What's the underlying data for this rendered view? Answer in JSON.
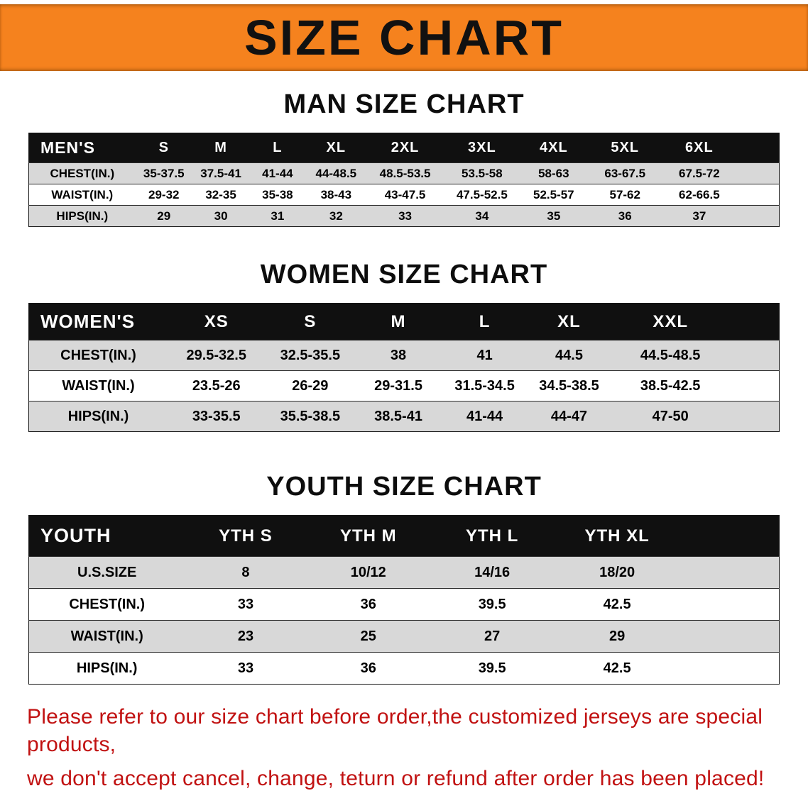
{
  "banner": {
    "title": "SIZE CHART"
  },
  "colors": {
    "banner_bg": "#f5821e",
    "table_header_bg": "#101010",
    "row_stripe_bg": "#d8d8d8",
    "disclaimer_text": "#c11212"
  },
  "sections": [
    {
      "id": "men",
      "heading": "MAN SIZE CHART",
      "header": [
        "MEN'S",
        "S",
        "M",
        "L",
        "XL",
        "2XL",
        "3XL",
        "4XL",
        "5XL",
        "6XL"
      ],
      "rows": [
        [
          "CHEST(IN.)",
          "35-37.5",
          "37.5-41",
          "41-44",
          "44-48.5",
          "48.5-53.5",
          "53.5-58",
          "58-63",
          "63-67.5",
          "67.5-72"
        ],
        [
          "WAIST(IN.)",
          "29-32",
          "32-35",
          "35-38",
          "38-43",
          "43-47.5",
          "47.5-52.5",
          "52.5-57",
          "57-62",
          "62-66.5"
        ],
        [
          "HIPS(IN.)",
          "29",
          "30",
          "31",
          "32",
          "33",
          "34",
          "35",
          "36",
          "37"
        ]
      ]
    },
    {
      "id": "women",
      "heading": "WOMEN SIZE CHART",
      "header": [
        "WOMEN'S",
        "XS",
        "S",
        "M",
        "L",
        "XL",
        "XXL"
      ],
      "rows": [
        [
          "CHEST(IN.)",
          "29.5-32.5",
          "32.5-35.5",
          "38",
          "41",
          "44.5",
          "44.5-48.5"
        ],
        [
          "WAIST(IN.)",
          "23.5-26",
          "26-29",
          "29-31.5",
          "31.5-34.5",
          "34.5-38.5",
          "38.5-42.5"
        ],
        [
          "HIPS(IN.)",
          "33-35.5",
          "35.5-38.5",
          "38.5-41",
          "41-44",
          "44-47",
          "47-50"
        ]
      ]
    },
    {
      "id": "youth",
      "heading": "YOUTH SIZE CHART",
      "header": [
        "YOUTH",
        "YTH S",
        "YTH M",
        "YTH L",
        "YTH XL"
      ],
      "rows": [
        [
          "U.S.SIZE",
          "8",
          "10/12",
          "14/16",
          "18/20"
        ],
        [
          "CHEST(IN.)",
          "33",
          "36",
          "39.5",
          "42.5"
        ],
        [
          "WAIST(IN.)",
          "23",
          "25",
          "27",
          "29"
        ],
        [
          "HIPS(IN.)",
          "33",
          "36",
          "39.5",
          "42.5"
        ]
      ]
    }
  ],
  "disclaimer": {
    "line1": "Please refer to our size chart before order,the customized jerseys are special products,",
    "line2": "we don't accept cancel, change, teturn or refund after order has been placed!"
  }
}
